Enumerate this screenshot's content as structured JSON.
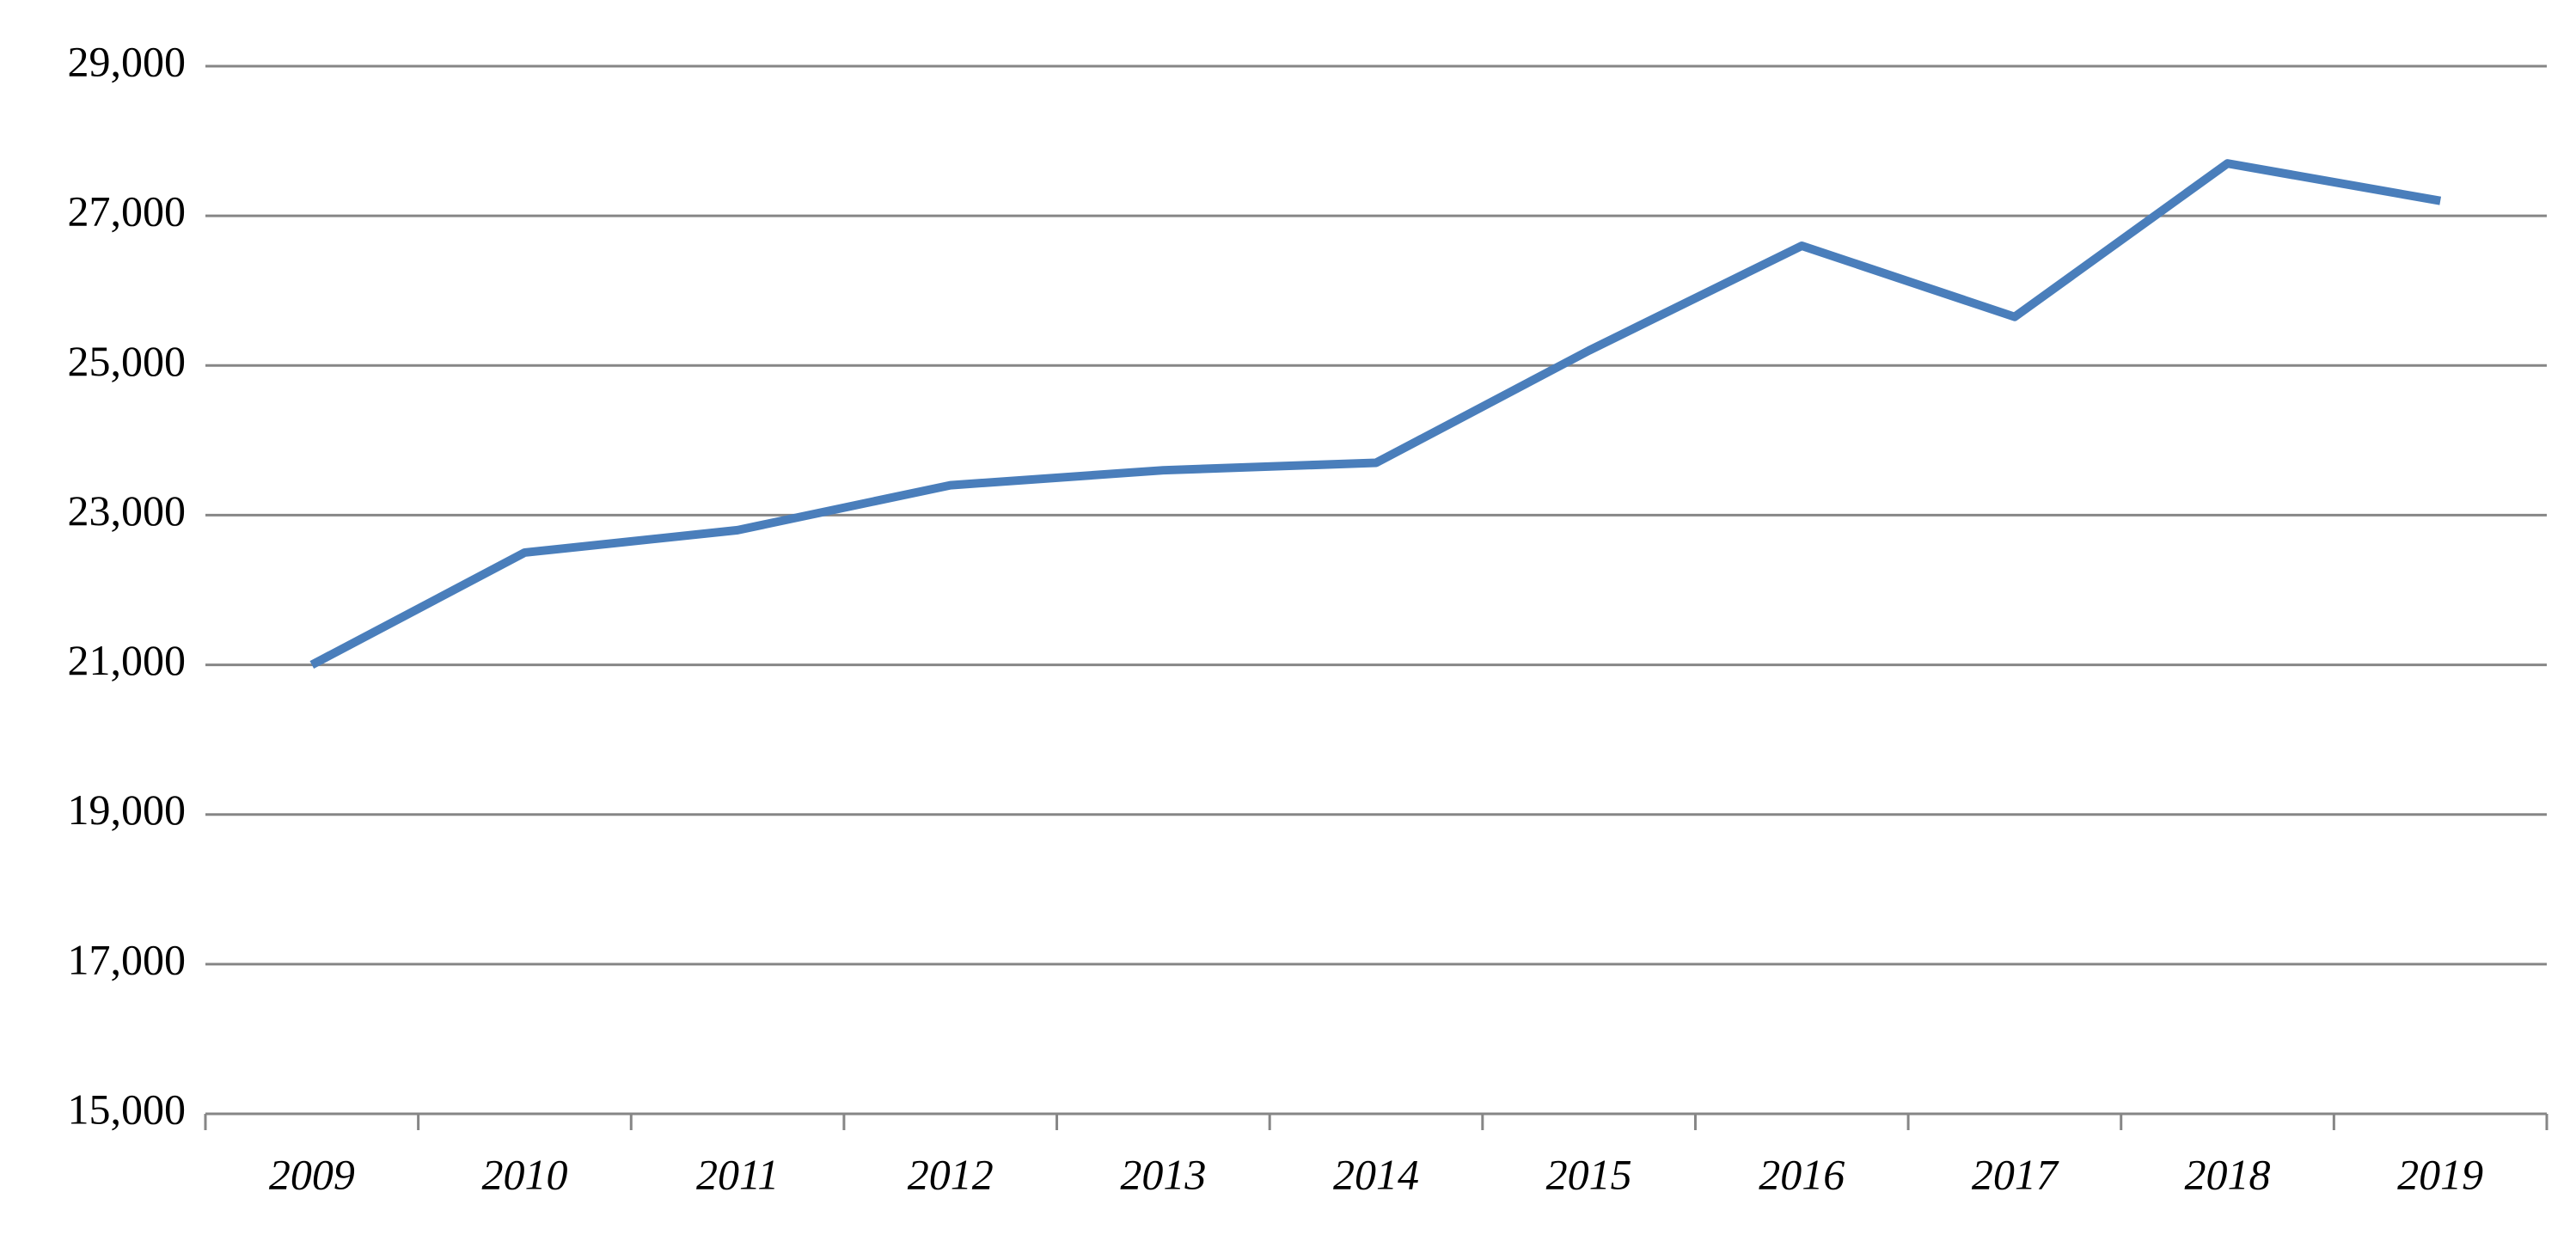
{
  "chart_data": {
    "type": "line",
    "categories": [
      "2009",
      "2010",
      "2011",
      "2012",
      "2013",
      "2014",
      "2015",
      "2016",
      "2017",
      "2018",
      "2019"
    ],
    "values": [
      21000,
      22500,
      22800,
      23400,
      23600,
      23700,
      25200,
      26600,
      25650,
      27700,
      27200
    ],
    "color": "#4a7ebb",
    "ylim": [
      15000,
      29000
    ],
    "yticks": [
      {
        "value": 15000,
        "label": "15,000"
      },
      {
        "value": 17000,
        "label": "17,000"
      },
      {
        "value": 19000,
        "label": "19,000"
      },
      {
        "value": 21000,
        "label": "21,000"
      },
      {
        "value": 23000,
        "label": "23,000"
      },
      {
        "value": 25000,
        "label": "25,000"
      },
      {
        "value": 27000,
        "label": "27,000"
      },
      {
        "value": 29000,
        "label": "29,000"
      }
    ],
    "grid": true
  }
}
